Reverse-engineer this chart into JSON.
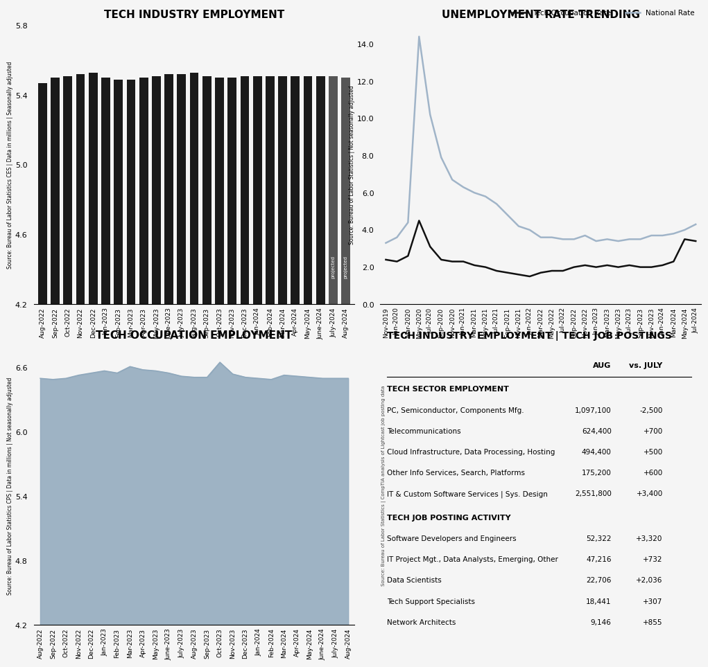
{
  "title_bar": "TECH INDUSTRY EMPLOYMENT",
  "title_line_unemp": "UNEMPLOYMENT RATE TRENDING",
  "title_area": "TECH OCCUPATION EMPLOYMENT",
  "title_table": "TECH INDUSTRY EMPLOYMENT | TECH JOB POSTINGS",
  "bar_ylabel": "Source: Bureau of Labor Statistics CES | Data in millions | Seasonally adjusted",
  "unemp_ylabel": "Source: Bureau of Labor Statistics | Not seasonally adjusted",
  "area_ylabel": "Source: Bureau of Labor Statistics CPS | Data in millions | Not seasonally adjusted",
  "table_ylabel": "Source: Bureau of Labor Statistics | CompTIA analysis of Lightcast job posting data",
  "bar_months": [
    "Aug-2022",
    "Sep-2022",
    "Oct-2022",
    "Nov-2022",
    "Dec-2022",
    "Jan-2023",
    "Feb-2023",
    "Mar-2023",
    "Apr-2023",
    "May-2023",
    "June-2023",
    "July-2023",
    "Aug-2023",
    "Sep-2023",
    "Oct-2023",
    "Nov-2023",
    "Dec-2023",
    "Jan-2024",
    "Feb-2024",
    "Mar-2024",
    "Apr-2024",
    "May-2024",
    "June-2024",
    "July-2024",
    "Aug-2024"
  ],
  "bar_values": [
    5.47,
    5.5,
    5.51,
    5.52,
    5.53,
    5.5,
    5.49,
    5.49,
    5.5,
    5.51,
    5.52,
    5.52,
    5.53,
    5.51,
    5.5,
    5.5,
    5.51,
    5.51,
    5.51,
    5.51,
    5.51,
    5.51,
    5.51,
    5.51,
    5.5
  ],
  "bar_ylim": [
    4.2,
    5.8
  ],
  "bar_color": "#1a1a1a",
  "bar_projected_indices": [
    23,
    24
  ],
  "unemp_months": [
    "Nov-2019",
    "Jan-2020",
    "Mar-2020",
    "May-2020",
    "Jul-2020",
    "Sep-2020",
    "Nov-2020",
    "Jan-2021",
    "Mar-2021",
    "May-2021",
    "Jul-2021",
    "Sep-2021",
    "Nov-2021",
    "Jan-2022",
    "Mar-2022",
    "May-2022",
    "Jul-2022",
    "Sep-2022",
    "Nov-2022",
    "Jan-2023",
    "Mar-2023",
    "May-2023",
    "Jul-2023",
    "Sep-2023",
    "Nov-2023",
    "Jan-2024",
    "Mar-2024",
    "May-2024",
    "Jul-2024"
  ],
  "tech_rate": [
    2.4,
    2.3,
    2.6,
    4.5,
    3.1,
    2.4,
    2.3,
    2.3,
    2.1,
    2.0,
    1.8,
    1.7,
    1.6,
    1.5,
    1.7,
    1.8,
    1.8,
    2.0,
    2.1,
    2.0,
    2.1,
    2.0,
    2.1,
    2.0,
    2.0,
    2.1,
    2.3,
    3.5,
    3.4
  ],
  "national_rate": [
    3.3,
    3.6,
    4.4,
    14.4,
    10.2,
    7.9,
    6.7,
    6.3,
    6.0,
    5.8,
    5.4,
    4.8,
    4.2,
    4.0,
    3.6,
    3.6,
    3.5,
    3.5,
    3.7,
    3.4,
    3.5,
    3.4,
    3.5,
    3.5,
    3.7,
    3.7,
    3.8,
    4.0,
    4.3
  ],
  "unemp_ylim": [
    0,
    15
  ],
  "area_months": [
    "Aug-2022",
    "Sep-2022",
    "Oct-2022",
    "Nov-2022",
    "Dec-2022",
    "Jan-2023",
    "Feb-2023",
    "Mar-2023",
    "Apr-2023",
    "May-2023",
    "June-2023",
    "July-2023",
    "Aug-2023",
    "Sep-2023",
    "Oct-2023",
    "Nov-2023",
    "Dec-2023",
    "Jan-2024",
    "Feb-2024",
    "Mar-2024",
    "Apr-2024",
    "May-2024",
    "June-2024",
    "July-2024",
    "Aug-2024"
  ],
  "area_values": [
    6.5,
    6.49,
    6.5,
    6.53,
    6.55,
    6.57,
    6.55,
    6.61,
    6.58,
    6.57,
    6.55,
    6.52,
    6.51,
    6.51,
    6.65,
    6.54,
    6.51,
    6.5,
    6.49,
    6.53,
    6.52,
    6.51,
    6.5,
    6.5,
    6.5
  ],
  "area_ylim": [
    4.2,
    6.8
  ],
  "area_color": "#8fa8bc",
  "table_headers": [
    "",
    "AUG",
    "vs. JULY"
  ],
  "table_section1_title": "TECH SECTOR EMPLOYMENT",
  "table_section1_rows": [
    [
      "PC, Semiconductor, Components Mfg.",
      "1,097,100",
      "-2,500"
    ],
    [
      "Telecommunications",
      "624,400",
      "+700"
    ],
    [
      "Cloud Infrastructure, Data Processing, Hosting",
      "494,400",
      "+500"
    ],
    [
      "Other Info Services, Search, Platforms",
      "175,200",
      "+600"
    ],
    [
      "IT & Custom Software Services | Sys. Design",
      "2,551,800",
      "+3,400"
    ]
  ],
  "table_section2_title": "TECH JOB POSTING ACTIVITY",
  "table_section2_rows": [
    [
      "Software Developers and Engineers",
      "52,322",
      "+3,320"
    ],
    [
      "IT Project Mgt., Data Analysts, Emerging, Other",
      "47,216",
      "+732"
    ],
    [
      "Data Scientists",
      "22,706",
      "+2,036"
    ],
    [
      "Tech Support Specialists",
      "18,441",
      "+307"
    ],
    [
      "Network Architects",
      "9,146",
      "+855"
    ]
  ],
  "bg_color": "#f5f5f5",
  "font_family": "DejaVu Sans"
}
